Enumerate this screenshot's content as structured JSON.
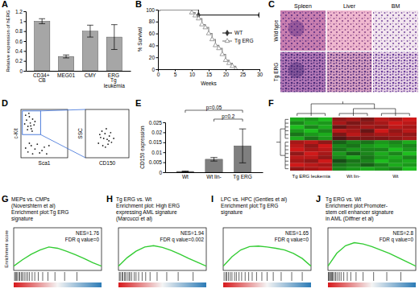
{
  "chart_data": [
    {
      "label": "A",
      "type": "bar",
      "ylabel": "Relative expression of hERG",
      "categories": [
        "CD34+ CB",
        "MEG01",
        "CMY",
        "ERG Tg leukemia"
      ],
      "values": [
        1,
        0.29,
        0.8,
        0.68
      ],
      "errors": [
        0.05,
        0.03,
        0.12,
        0.25
      ],
      "color": "#a6a6a6",
      "ylim": [
        0,
        1.2
      ],
      "yticks": [
        0,
        0.2,
        0.4,
        0.6,
        0.8,
        1,
        1.2
      ]
    },
    {
      "label": "B",
      "type": "line",
      "xlabel": "Weeks",
      "ylabel": "% Survival",
      "series": [
        {
          "name": "WT",
          "color": "#333333",
          "marker": "diamond",
          "line_style": "step",
          "x": [
            0,
            12,
            30
          ],
          "values": [
            100,
            91,
            91
          ]
        },
        {
          "name": "Tg ERG",
          "color": "#888888",
          "marker": "triangle",
          "line_style": "step",
          "x": [
            0,
            10,
            11,
            12,
            13,
            14,
            15,
            16,
            17,
            18,
            19,
            20,
            21,
            22,
            23
          ],
          "values": [
            100,
            95,
            90,
            85,
            75,
            70,
            60,
            50,
            40,
            35,
            25,
            15,
            10,
            5,
            0
          ]
        }
      ],
      "xlim": [
        0,
        30
      ],
      "xticks": [
        0,
        5,
        10,
        15,
        20,
        25,
        30
      ],
      "ylim": [
        0,
        100
      ],
      "yticks": [
        0,
        20,
        40,
        60,
        80,
        100
      ],
      "legend": "right"
    },
    {
      "label": "C",
      "type": "image_grid",
      "columns": [
        "Spleen",
        "Liver",
        "BM"
      ],
      "rows": [
        "Wild type",
        "Tg ERG"
      ]
    },
    {
      "label": "D",
      "type": "scatter",
      "color": "#222222",
      "xlim": [
        0,
        100
      ],
      "ylim": [
        0,
        100
      ],
      "tick_labels": false,
      "plots": [
        {
          "xlabel": "Sca1",
          "ylabel": "c-Kit",
          "x": [
            8,
            12,
            15,
            18,
            20,
            22,
            25,
            10,
            14,
            28,
            30,
            17,
            21,
            24,
            10,
            15,
            22,
            30,
            40,
            50,
            18,
            35,
            45,
            55,
            60,
            25
          ],
          "values": [
            70,
            78,
            65,
            85,
            72,
            60,
            80,
            88,
            58,
            68,
            75,
            92,
            66,
            55,
            20,
            12,
            25,
            18,
            10,
            22,
            30,
            28,
            15,
            8,
            25,
            8
          ],
          "gate": {
            "x": [
              3,
              42
            ],
            "y": [
              48,
              97
            ]
          }
        },
        {
          "xlabel": "CD150",
          "ylabel": "SSC",
          "x": [
            30,
            35,
            40,
            45,
            50,
            55,
            60,
            38,
            48,
            52,
            42,
            58,
            65,
            33,
            46,
            54
          ],
          "values": [
            30,
            42,
            25,
            50,
            38,
            45,
            32,
            55,
            60,
            28,
            40,
            52,
            40,
            48,
            22,
            35
          ]
        }
      ]
    },
    {
      "label": "E",
      "type": "bar",
      "ylabel": "CD150 expression",
      "categories": [
        "Wt",
        "Wt lin-",
        "Tg ERG"
      ],
      "values": [
        0.0004,
        0.0065,
        0.0132
      ],
      "errors": [
        0.0002,
        0.0009,
        0.0085
      ],
      "color": "#7f7f7f",
      "ylim": [
        0,
        0.025
      ],
      "yticks": [
        0,
        0.005,
        0.01,
        0.015,
        0.02,
        0.025
      ],
      "comparisons": [
        {
          "text": "p=0.05",
          "groups": [
            "Wt",
            "Tg ERG"
          ]
        },
        {
          "text": "p=0.2",
          "groups": [
            "Wt lin-",
            "Tg ERG"
          ]
        }
      ]
    },
    {
      "label": "F",
      "type": "heatmap",
      "column_groups": [
        "Tg ERG leukemia",
        "Wt lin-",
        "Wt"
      ],
      "zlim": [
        -1,
        1
      ],
      "cells": [
        [
          -0.8,
          -0.7,
          -0.9,
          0.6,
          0.7,
          0.5,
          0.8,
          0.7,
          0.9
        ],
        [
          -0.6,
          -0.8,
          -0.7,
          0.7,
          0.5,
          0.6,
          0.7,
          0.9,
          0.8
        ],
        [
          -0.9,
          -0.6,
          -0.8,
          0.4,
          0.6,
          0.7,
          0.6,
          0.8,
          0.7
        ],
        [
          -0.7,
          -0.9,
          -0.6,
          0.8,
          0.7,
          0.4,
          0.9,
          0.6,
          0.8
        ],
        [
          -0.5,
          -0.7,
          -0.8,
          0.5,
          0.8,
          0.6,
          0.7,
          0.7,
          0.6
        ],
        [
          -0.8,
          -0.5,
          -0.7,
          0.3,
          0.5,
          0.5,
          0.5,
          0.6,
          0.7
        ],
        [
          0.7,
          0.8,
          0.6,
          -0.4,
          -0.6,
          -0.5,
          -0.7,
          -0.6,
          -0.8
        ],
        [
          0.8,
          0.6,
          0.9,
          -0.6,
          -0.5,
          -0.7,
          -0.8,
          -0.7,
          -0.6
        ],
        [
          0.9,
          0.7,
          0.8,
          -0.5,
          -0.7,
          -0.6,
          -0.6,
          -0.9,
          -0.7
        ],
        [
          0.6,
          0.9,
          0.7,
          -0.7,
          -0.4,
          -0.6,
          -0.8,
          -0.6,
          -0.9
        ],
        [
          0.8,
          0.8,
          0.6,
          -0.6,
          -0.8,
          -0.5,
          -0.7,
          -0.8,
          -0.6
        ],
        [
          0.7,
          0.6,
          0.9,
          -0.3,
          -0.5,
          -0.6,
          -0.9,
          -0.7,
          -0.8
        ],
        [
          0.9,
          0.8,
          0.7,
          -0.5,
          -0.6,
          -0.4,
          -0.6,
          -0.8,
          -0.7
        ],
        [
          0.6,
          0.7,
          0.8,
          -0.6,
          -0.7,
          -0.8,
          -0.7,
          -0.6,
          -0.9
        ]
      ]
    },
    {
      "label": "G",
      "type": "line",
      "title": [
        "MEPs vs. CMPs",
        "(Novershtern et al)",
        "Enrichment plot:Tg ERG",
        "signature"
      ],
      "ylabel": "Enrichment score",
      "annotations": [
        "NES=1.76",
        "FDR q value=0"
      ],
      "x": [
        0,
        10,
        20,
        30,
        40,
        50,
        60,
        70,
        80,
        90,
        100
      ],
      "values": [
        0,
        0.15,
        0.28,
        0.38,
        0.45,
        0.42,
        0.35,
        0.27,
        0.18,
        0.08,
        0
      ],
      "hits": [
        1,
        2,
        3,
        4,
        6,
        7,
        9,
        10,
        12,
        14,
        16,
        18,
        21,
        24,
        28,
        33,
        39,
        47,
        58,
        72
      ],
      "color": "#33cc33",
      "xlim": [
        0,
        100
      ],
      "ylim": [
        -0.1,
        0.9
      ],
      "tick_labels": false
    },
    {
      "label": "H",
      "type": "line",
      "title": [
        "Tg ERG vs. Wt",
        "Enrichment plot: High ERG",
        "expressing AML signature",
        "(Marcucci et al)"
      ],
      "annotations": [
        "NES=1.94",
        "FDR q value=0.002"
      ],
      "x": [
        0,
        10,
        20,
        30,
        40,
        50,
        60,
        70,
        80,
        90,
        100
      ],
      "values": [
        0,
        0.2,
        0.35,
        0.45,
        0.48,
        0.44,
        0.37,
        0.28,
        0.18,
        0.09,
        0
      ],
      "hits": [
        1,
        2,
        4,
        5,
        7,
        8,
        10,
        12,
        13,
        15,
        18,
        20,
        23,
        27,
        31,
        36,
        44,
        55,
        68,
        85
      ],
      "color": "#33cc33",
      "xlim": [
        0,
        100
      ],
      "ylim": [
        -0.1,
        0.9
      ],
      "tick_labels": false
    },
    {
      "label": "I",
      "type": "line",
      "title": [
        "LPC vs. HPC (Gentles et al)",
        "Enrichment plot:Tg ERG",
        "signature"
      ],
      "annotations": [
        "NES=1.65",
        "FDR q value=0"
      ],
      "x": [
        0,
        10,
        20,
        30,
        40,
        50,
        60,
        70,
        80,
        90,
        100
      ],
      "values": [
        0,
        0.22,
        0.38,
        0.46,
        0.47,
        0.45,
        0.42,
        0.38,
        0.3,
        0.18,
        0
      ],
      "hits": [
        1,
        3,
        4,
        6,
        8,
        10,
        13,
        15,
        18,
        21,
        25,
        29,
        33,
        38,
        44,
        50,
        57,
        66,
        78,
        90
      ],
      "color": "#33cc33",
      "xlim": [
        0,
        100
      ],
      "ylim": [
        -0.1,
        0.9
      ],
      "tick_labels": false
    },
    {
      "label": "J",
      "type": "line",
      "title": [
        "Tg ERG vs. Wt",
        "Enrichment plot:Promoter-",
        "stem cell enhancer signature",
        "in AML (Diffner et al)"
      ],
      "annotations": [
        "NES=2.8",
        "FDR q value=0"
      ],
      "x": [
        0,
        10,
        20,
        30,
        40,
        50,
        60,
        70,
        80,
        90,
        100
      ],
      "values": [
        0,
        0.3,
        0.48,
        0.55,
        0.52,
        0.46,
        0.38,
        0.3,
        0.2,
        0.1,
        0
      ],
      "hits": [
        0.5,
        1,
        2,
        3,
        4,
        5,
        6,
        8,
        9,
        11,
        13,
        15,
        18,
        22,
        26,
        32,
        40,
        52,
        67,
        83
      ],
      "color": "#33cc33",
      "xlim": [
        0,
        100
      ],
      "ylim": [
        -0.1,
        0.9
      ],
      "tick_labels": false
    }
  ]
}
